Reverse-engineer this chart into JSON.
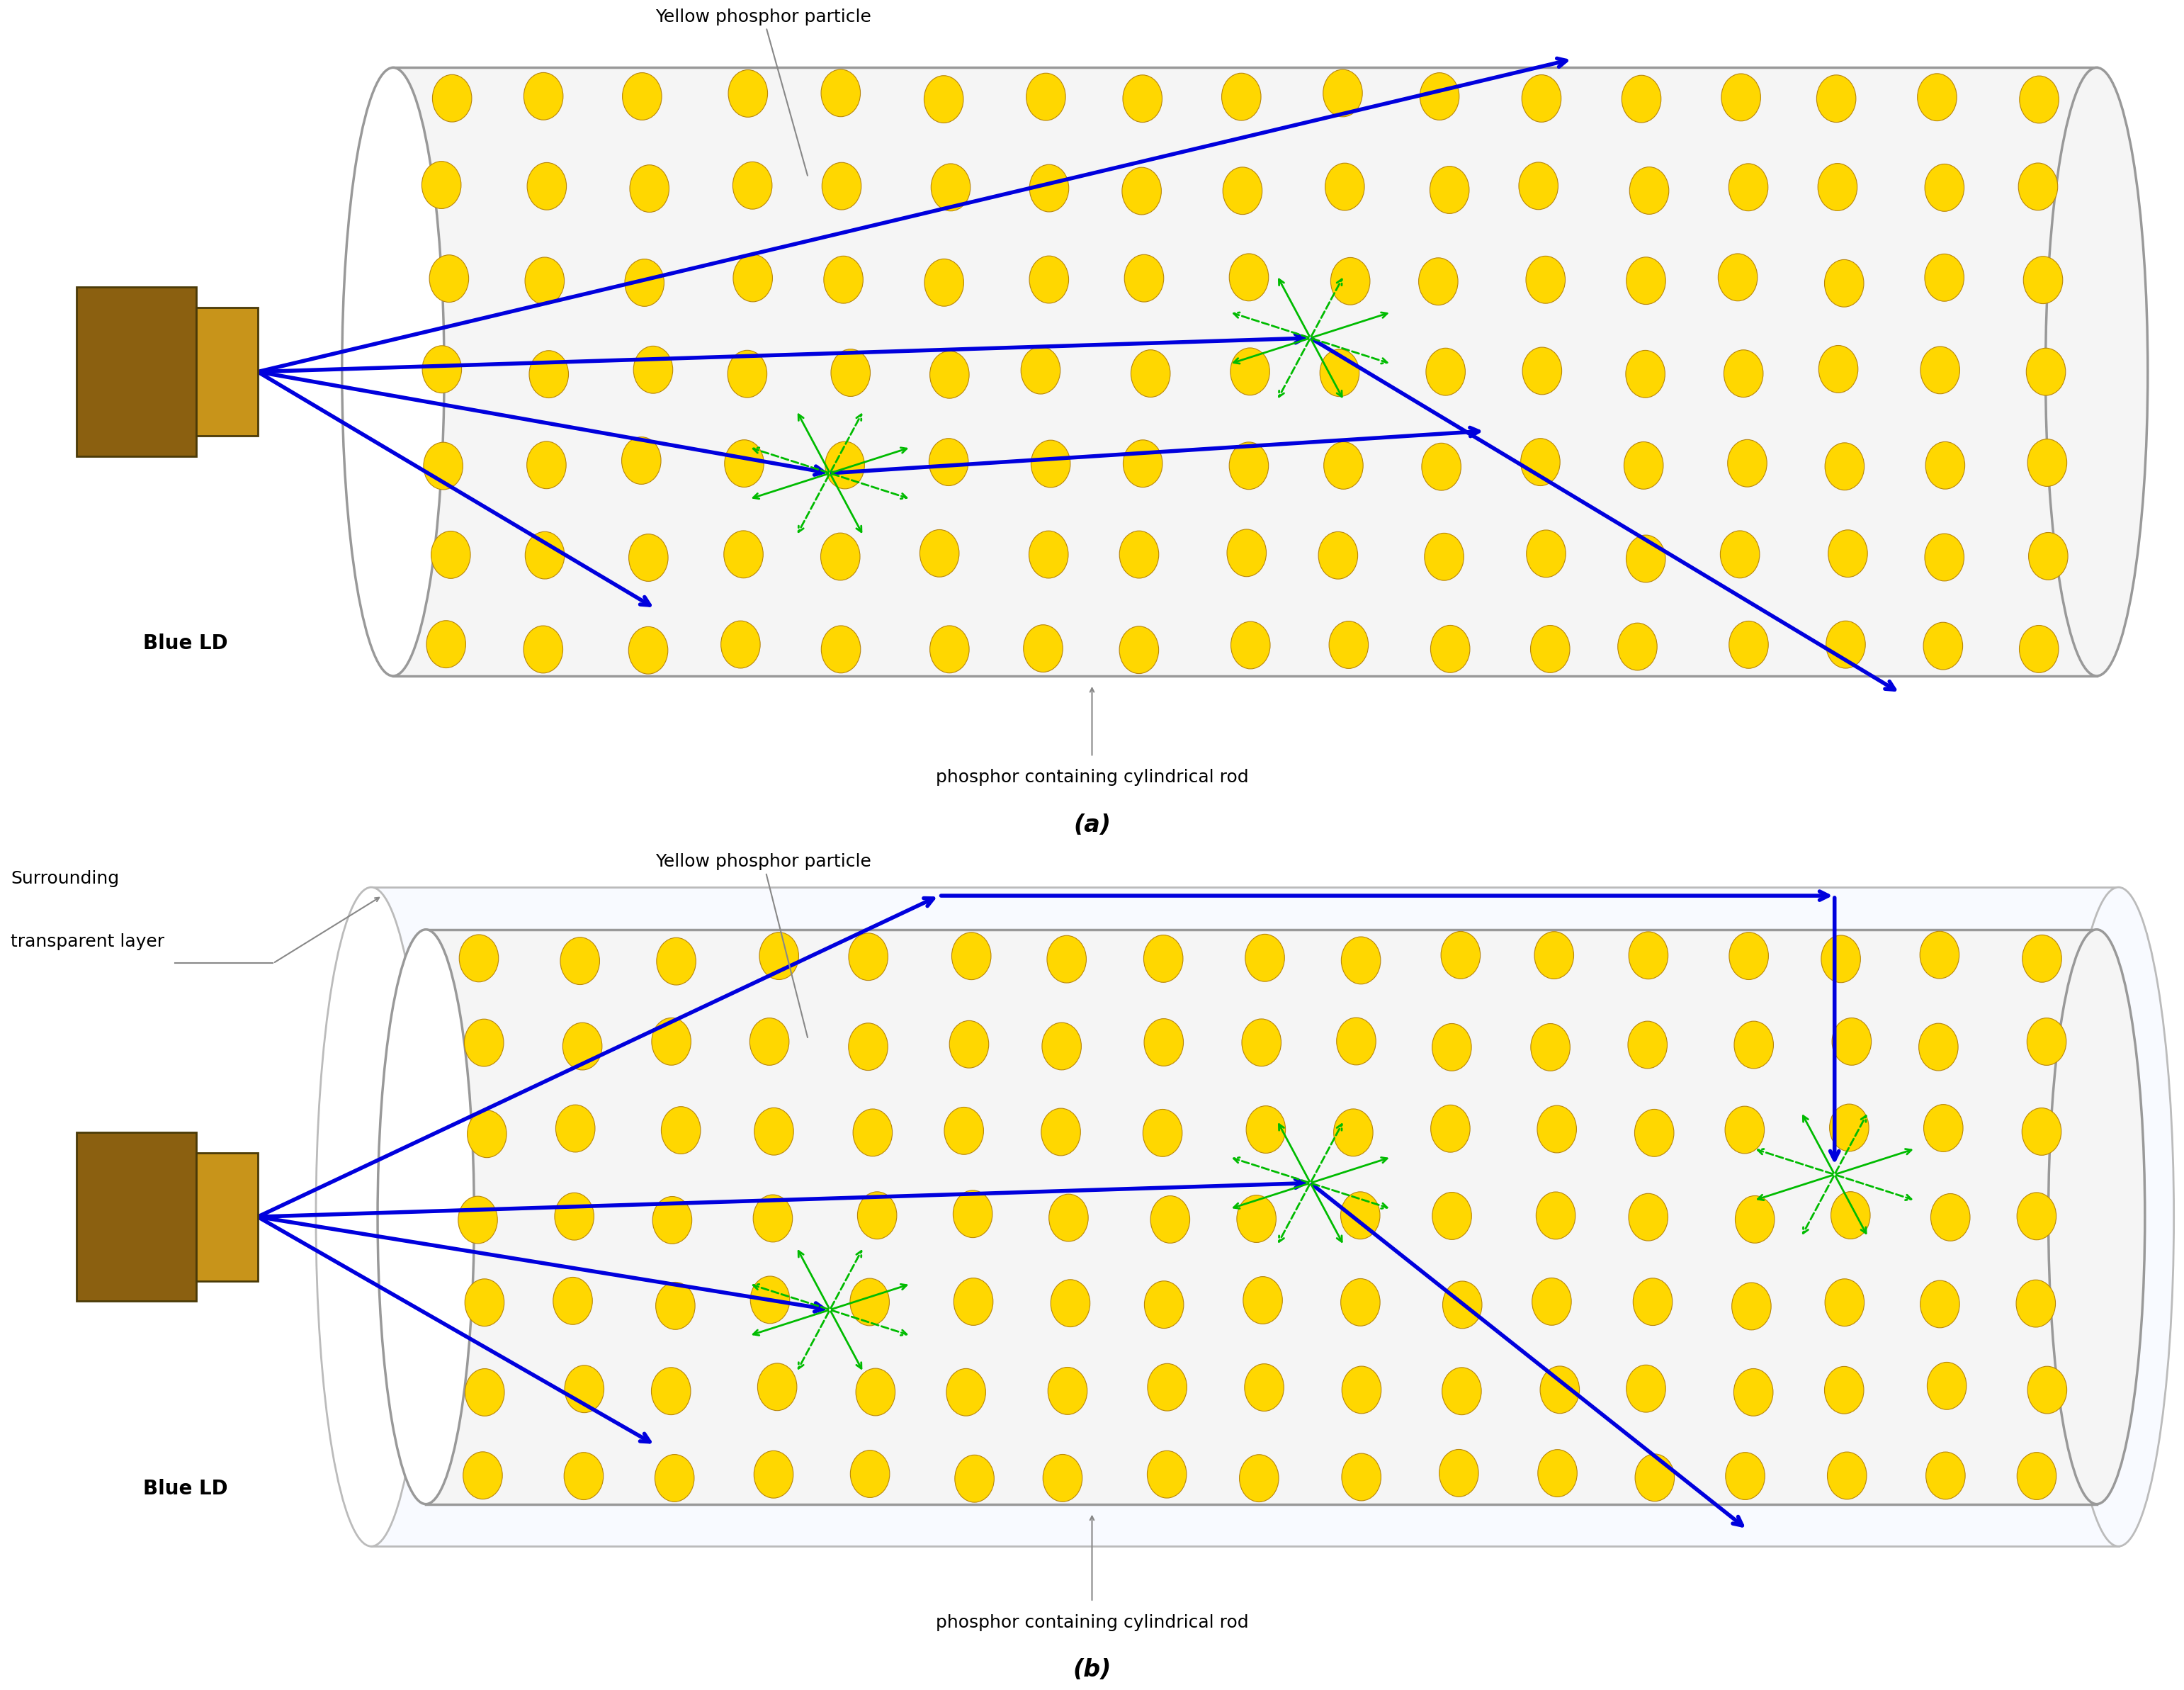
{
  "bg_color": "#ffffff",
  "rod_fill": "#F5F5F5",
  "rod_edge": "#999999",
  "outer_fill": "#F0F5FF",
  "outer_edge": "#BBBBBB",
  "phosphor_fill": "#FFD700",
  "phosphor_edge": "#B8860B",
  "ld_back": "#8B6010",
  "ld_front": "#C8941A",
  "ld_edge": "#4A3A08",
  "blue": "#0000DD",
  "green": "#00BB00",
  "annotation_color": "#888888",
  "black": "#000000",
  "panel_a": "(a)",
  "panel_b": "(b)",
  "label_ypp": "Yellow phosphor particle",
  "label_rod": "phosphor containing cylindrical rod",
  "label_ld": "Blue LD",
  "label_surr1": "Surrounding",
  "label_surr2": "transparent layer"
}
